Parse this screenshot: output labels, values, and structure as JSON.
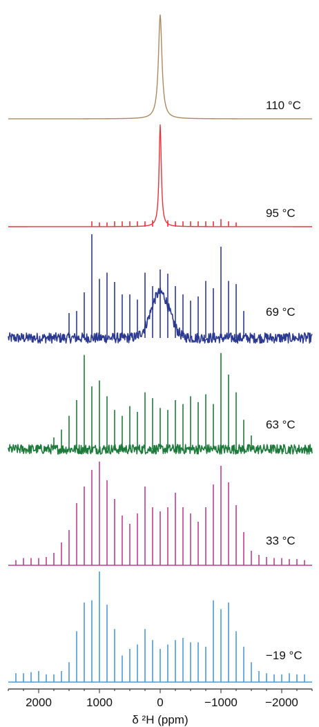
{
  "chart_data": {
    "type": "line",
    "xlabel": "δ ²H (ppm)",
    "x_reversed": true,
    "xlim": [
      2500,
      -2500
    ],
    "ticks": [
      {
        "value": 2000,
        "label": "2000"
      },
      {
        "value": 1000,
        "label": "1000"
      },
      {
        "value": 0,
        "label": "0"
      },
      {
        "value": -1000,
        "label": "−1000"
      },
      {
        "value": -2000,
        "label": "−2000"
      }
    ],
    "sideband_spacing_ppm": 125,
    "series": [
      {
        "name": "110 °C",
        "color": "#a88a5f",
        "kind": "lorentzian",
        "center": 0,
        "width": 35,
        "height": 0.94,
        "broad": {
          "width": 0,
          "height": 0
        },
        "noise": 0,
        "sidebands": []
      },
      {
        "name": "95 °C",
        "color": "#e8323a",
        "kind": "lorentzian",
        "center": 0,
        "width": 22,
        "height": 0.95,
        "broad": {
          "width": 0,
          "height": 0
        },
        "noise": 0,
        "sidebands": [
          [
            1125,
            0.05
          ],
          [
            1000,
            0.04
          ],
          [
            875,
            0.04
          ],
          [
            750,
            0.05
          ],
          [
            625,
            0.05
          ],
          [
            500,
            0.05
          ],
          [
            375,
            0.05
          ],
          [
            250,
            0.05
          ],
          [
            125,
            0.06
          ],
          [
            -125,
            0.06
          ],
          [
            -250,
            0.05
          ],
          [
            -375,
            0.05
          ],
          [
            -500,
            0.05
          ],
          [
            -625,
            0.05
          ],
          [
            -750,
            0.05
          ],
          [
            -875,
            0.05
          ],
          [
            -1000,
            0.07
          ],
          [
            -1125,
            0.05
          ],
          [
            -1250,
            0.04
          ]
        ]
      },
      {
        "name": "69 °C",
        "color": "#2b3990",
        "kind": "sticks",
        "center": 0,
        "width": 6,
        "height": 0,
        "broad": {
          "width": 150,
          "height": 0.44
        },
        "noise": 0.05,
        "sidebands": [
          [
            1500,
            0.24
          ],
          [
            1375,
            0.26
          ],
          [
            1250,
            0.44
          ],
          [
            1125,
            1.0
          ],
          [
            1000,
            0.57
          ],
          [
            875,
            0.63
          ],
          [
            750,
            0.54
          ],
          [
            625,
            0.42
          ],
          [
            500,
            0.42
          ],
          [
            375,
            0.37
          ],
          [
            250,
            0.63
          ],
          [
            125,
            0.5
          ],
          [
            0,
            0.66
          ],
          [
            -125,
            0.62
          ],
          [
            -250,
            0.5
          ],
          [
            -375,
            0.42
          ],
          [
            -500,
            0.36
          ],
          [
            -625,
            0.4
          ],
          [
            -750,
            0.55
          ],
          [
            -875,
            0.48
          ],
          [
            -1000,
            0.88
          ],
          [
            -1125,
            0.55
          ],
          [
            -1250,
            0.52
          ],
          [
            -1375,
            0.26
          ]
        ]
      },
      {
        "name": "63 °C",
        "color": "#1e7a3a",
        "kind": "sticks",
        "center": 0,
        "width": 6,
        "height": 0,
        "broad": {
          "width": 0,
          "height": 0
        },
        "noise": 0.05,
        "sidebands": [
          [
            1750,
            0.12
          ],
          [
            1625,
            0.2
          ],
          [
            1500,
            0.34
          ],
          [
            1375,
            0.5
          ],
          [
            1250,
            0.96
          ],
          [
            1125,
            0.64
          ],
          [
            1000,
            0.7
          ],
          [
            875,
            0.54
          ],
          [
            750,
            0.4
          ],
          [
            625,
            0.34
          ],
          [
            500,
            0.44
          ],
          [
            375,
            0.38
          ],
          [
            250,
            0.58
          ],
          [
            125,
            0.52
          ],
          [
            0,
            0.42
          ],
          [
            -125,
            0.4
          ],
          [
            -250,
            0.5
          ],
          [
            -375,
            0.46
          ],
          [
            -500,
            0.54
          ],
          [
            -625,
            0.48
          ],
          [
            -750,
            0.56
          ],
          [
            -875,
            0.46
          ],
          [
            -1000,
            0.98
          ],
          [
            -1125,
            0.76
          ],
          [
            -1250,
            0.58
          ],
          [
            -1375,
            0.3
          ],
          [
            -1500,
            0.14
          ]
        ]
      },
      {
        "name": "33 °C",
        "color": "#c03c8e",
        "kind": "sticks",
        "center": 0,
        "width": 6,
        "height": 0,
        "broad": {
          "width": 0,
          "height": 0
        },
        "noise": 0,
        "sidebands": [
          [
            2375,
            0.05
          ],
          [
            2250,
            0.07
          ],
          [
            2125,
            0.07
          ],
          [
            2000,
            0.07
          ],
          [
            1875,
            0.08
          ],
          [
            1750,
            0.12
          ],
          [
            1625,
            0.22
          ],
          [
            1500,
            0.34
          ],
          [
            1375,
            0.6
          ],
          [
            1250,
            0.76
          ],
          [
            1125,
            0.92
          ],
          [
            1000,
            1.0
          ],
          [
            875,
            0.82
          ],
          [
            750,
            0.64
          ],
          [
            625,
            0.48
          ],
          [
            500,
            0.4
          ],
          [
            375,
            0.5
          ],
          [
            250,
            0.76
          ],
          [
            125,
            0.56
          ],
          [
            0,
            0.52
          ],
          [
            -125,
            0.56
          ],
          [
            -250,
            0.7
          ],
          [
            -375,
            0.56
          ],
          [
            -500,
            0.5
          ],
          [
            -625,
            0.42
          ],
          [
            -750,
            0.56
          ],
          [
            -875,
            0.78
          ],
          [
            -1000,
            0.96
          ],
          [
            -1125,
            0.8
          ],
          [
            -1250,
            0.58
          ],
          [
            -1375,
            0.32
          ],
          [
            -1500,
            0.14
          ],
          [
            -1625,
            0.1
          ],
          [
            -1750,
            0.08
          ],
          [
            -1875,
            0.07
          ],
          [
            -2000,
            0.07
          ],
          [
            -2125,
            0.06
          ],
          [
            -2250,
            0.06
          ],
          [
            -2375,
            0.05
          ]
        ]
      },
      {
        "name": "−19 °C",
        "color": "#4b9ad8",
        "kind": "sticks",
        "center": 0,
        "width": 6,
        "height": 0,
        "broad": {
          "width": 0,
          "height": 0
        },
        "noise": 0,
        "sidebands": [
          [
            2375,
            0.08
          ],
          [
            2250,
            0.08
          ],
          [
            2125,
            0.09
          ],
          [
            2000,
            0.1
          ],
          [
            1875,
            0.07
          ],
          [
            1750,
            0.07
          ],
          [
            1625,
            0.1
          ],
          [
            1500,
            0.18
          ],
          [
            1375,
            0.46
          ],
          [
            1250,
            0.72
          ],
          [
            1125,
            0.74
          ],
          [
            1000,
            1.0
          ],
          [
            875,
            0.7
          ],
          [
            750,
            0.48
          ],
          [
            625,
            0.24
          ],
          [
            500,
            0.3
          ],
          [
            375,
            0.34
          ],
          [
            250,
            0.48
          ],
          [
            125,
            0.38
          ],
          [
            0,
            0.3
          ],
          [
            -125,
            0.34
          ],
          [
            -250,
            0.38
          ],
          [
            -375,
            0.4
          ],
          [
            -500,
            0.36
          ],
          [
            -625,
            0.36
          ],
          [
            -750,
            0.32
          ],
          [
            -875,
            0.74
          ],
          [
            -1000,
            0.66
          ],
          [
            -1125,
            0.72
          ],
          [
            -1250,
            0.46
          ],
          [
            -1375,
            0.32
          ],
          [
            -1500,
            0.18
          ],
          [
            -1625,
            0.1
          ],
          [
            -1750,
            0.08
          ],
          [
            -1875,
            0.07
          ],
          [
            -2000,
            0.07
          ],
          [
            -2125,
            0.08
          ],
          [
            -2250,
            0.07
          ],
          [
            -2375,
            0.07
          ]
        ]
      }
    ]
  }
}
